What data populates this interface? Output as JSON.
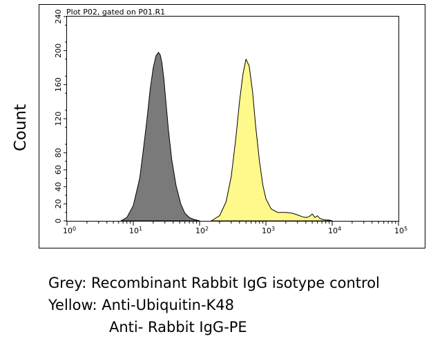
{
  "ylabel": "Count",
  "caption": {
    "line1": "Grey: Recombinant Rabbit IgG isotype control",
    "line2": "Yellow: Anti-Ubiquitin-K48",
    "line3": "Anti- Rabbit IgG-PE"
  },
  "chart_data": {
    "type": "area",
    "title": "Plot P02, gated on P01.R1",
    "xlabel": "",
    "ylabel": "Count",
    "xscale": "log",
    "xlim": [
      1,
      100000
    ],
    "ylim": [
      0,
      240
    ],
    "x_ticks": [
      {
        "base": "10",
        "exp": "0"
      },
      {
        "base": "10",
        "exp": "1"
      },
      {
        "base": "10",
        "exp": "2"
      },
      {
        "base": "10",
        "exp": "3"
      },
      {
        "base": "10",
        "exp": "4"
      },
      {
        "base": "10",
        "exp": "5"
      }
    ],
    "y_ticks": [
      "0",
      "20",
      "40",
      "60",
      "80",
      "120",
      "160",
      "200",
      "240"
    ],
    "series": [
      {
        "color": "#7a7a7a",
        "x": [
          6.5,
          8,
          10,
          12.5,
          14,
          16,
          18,
          20,
          22,
          24,
          25.5,
          27,
          29,
          31,
          34,
          38,
          44,
          52,
          60,
          70,
          80,
          90,
          100
        ],
        "y": [
          0,
          4,
          18,
          50,
          80,
          118,
          155,
          180,
          194,
          198,
          195,
          186,
          166,
          140,
          106,
          72,
          42,
          20,
          9,
          4,
          2,
          1,
          0
        ]
      },
      {
        "color": "#fff88a",
        "x": [
          150,
          200,
          250,
          300,
          350,
          400,
          450,
          500,
          560,
          630,
          700,
          800,
          900,
          1000,
          1200,
          1500,
          2000,
          2500,
          3000,
          3500,
          4000,
          4500,
          5000,
          5500,
          6000,
          6500,
          7000,
          8000,
          9000,
          10000
        ],
        "y": [
          0,
          6,
          22,
          52,
          95,
          140,
          172,
          190,
          182,
          152,
          112,
          70,
          42,
          26,
          14,
          10,
          10,
          9,
          7,
          5,
          4,
          5,
          8,
          4,
          6,
          3,
          2,
          1,
          1,
          0
        ]
      }
    ]
  }
}
